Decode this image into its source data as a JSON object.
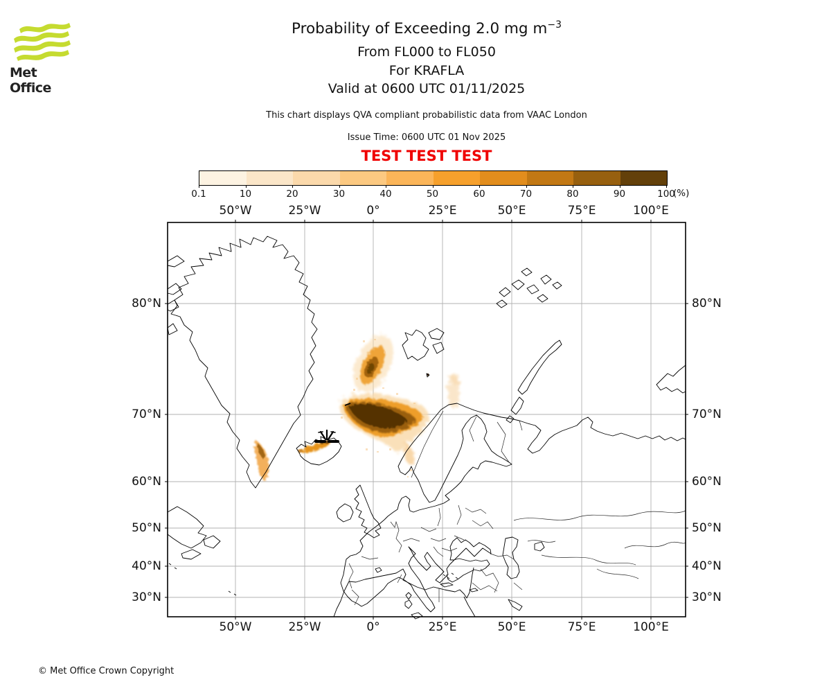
{
  "logo": {
    "brand": "Met Office",
    "wave_color": "#c5db30"
  },
  "header": {
    "title_main": "Probability of Exceeding 2.0 mg m",
    "title_sup": "−3",
    "line2": "From FL000 to FL050",
    "line3": "For KRAFLA",
    "line4": "Valid at 0600 UTC 01/11/2025",
    "note": "This chart displays QVA compliant probabilistic data from VAAC London",
    "issue_time": "Issue Time: 0600 UTC 01 Nov 2025",
    "test_banner": "TEST TEST TEST",
    "test_color": "#ef0000"
  },
  "colorbar": {
    "tick_labels": [
      "0.1",
      "10",
      "20",
      "30",
      "40",
      "50",
      "60",
      "70",
      "80",
      "90",
      "100"
    ],
    "unit_label": "(%)",
    "segment_colors": [
      "#fdf3e2",
      "#fbe6c8",
      "#fbd9ab",
      "#fcc981",
      "#fbb559",
      "#f6a02c",
      "#e28d1d",
      "#c27814",
      "#97600f",
      "#63400a"
    ]
  },
  "map_axes": {
    "top": [
      "50°W",
      "25°W",
      "0°",
      "25°E",
      "50°E",
      "75°E",
      "100°E"
    ],
    "bottom": [
      "50°W",
      "25°W",
      "0°",
      "25°E",
      "50°E",
      "75°E",
      "100°E"
    ],
    "left": [
      "80°N",
      "70°N",
      "60°N",
      "50°N",
      "40°N",
      "30°N"
    ],
    "right": [
      "80°N",
      "70°N",
      "60°N",
      "50°N",
      "40°N",
      "30°N"
    ]
  },
  "footer": {
    "copyright": "© Met Office Crown Copyright"
  },
  "chart_data": {
    "type": "heatmap",
    "title": "Probability of Exceeding 2.0 mg m⁻³",
    "flight_levels": "FL000 to FL050",
    "volcano": "KRAFLA",
    "valid_at": "0600 UTC 01/11/2025",
    "issue_time": "0600 UTC 01 Nov 2025",
    "data_source_note": "QVA compliant probabilistic data from VAAC London",
    "test_status": "TEST TEST TEST",
    "projection": "Mercator",
    "lon_range_deg": [
      -74,
      112
    ],
    "lat_range_deg": [
      24.5,
      84
    ],
    "gridline_lons_deg": [
      -50,
      -25,
      0,
      25,
      50,
      75,
      100
    ],
    "gridline_lats_deg": [
      80,
      70,
      60,
      50,
      40,
      30
    ],
    "probability_thresholds_percent": [
      0.1,
      10,
      20,
      30,
      40,
      50,
      60,
      70,
      80,
      90,
      100
    ],
    "scale_colors": [
      "#fdf3e2",
      "#fbe6c8",
      "#fbd9ab",
      "#fcc981",
      "#fbb559",
      "#f6a02c",
      "#e28d1d",
      "#c27814",
      "#97600f",
      "#63400a"
    ],
    "volcano_marker_lonlat": [
      -16.8,
      65.7
    ],
    "plumes": [
      {
        "name": "main-plume",
        "approx_center_lonlat": [
          4,
          69.5
        ],
        "extent_lonlat": [
          [
            -10,
            71.5
          ],
          [
            17,
            66.5
          ]
        ],
        "max_probability_percent": 100,
        "note": "dense dark elongated plume stretching east-southeast to the Norwegian coast near Tromsø"
      },
      {
        "name": "north-blob",
        "approx_center_lonlat": [
          0,
          75.3
        ],
        "max_probability_percent": 70,
        "note": "diagonal speckled blob north of the main plume"
      },
      {
        "name": "greenland-coast-streak",
        "approx_center_lonlat": [
          -41,
          64
        ],
        "max_probability_percent": 60,
        "note": "narrow streak hugging the southeast Greenland coast"
      },
      {
        "name": "iceland-streak",
        "approx_center_lonlat": [
          -20,
          65.3
        ],
        "max_probability_percent": 80,
        "note": "streak across northwest Iceland extending from Krafla"
      },
      {
        "name": "northeast-wisp",
        "approx_center_lonlat": [
          29,
          72.5
        ],
        "max_probability_percent": 15,
        "note": "faint speckle between North Cape and Bear Island"
      }
    ]
  }
}
